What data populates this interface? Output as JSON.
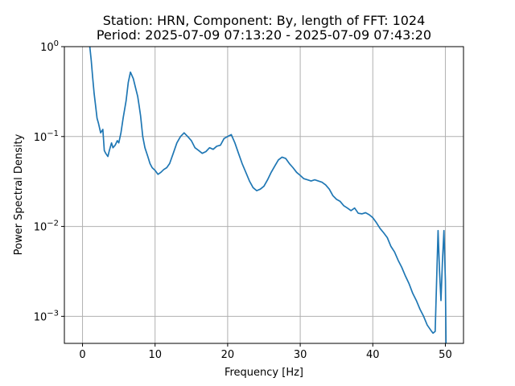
{
  "chart_data": {
    "type": "line",
    "title_line1": "Station: HRN, Component: By, length of FFT: 1024",
    "title_line2": "Period: 2025-07-09 07:13:20 - 2025-07-09 07:43:20",
    "xlabel": "Frequency [Hz]",
    "ylabel": "Power Spectral Density",
    "xlim": [
      -2.5,
      52.5
    ],
    "ylim": [
      0.0005,
      1
    ],
    "yscale": "log",
    "grid": true,
    "x_ticks": [
      0,
      10,
      20,
      30,
      40,
      50
    ],
    "y_ticks": [
      {
        "value": 0.001,
        "base": "10",
        "exp": "−3"
      },
      {
        "value": 0.01,
        "base": "10",
        "exp": "−2"
      },
      {
        "value": 0.1,
        "base": "10",
        "exp": "−1"
      },
      {
        "value": 1,
        "base": "10",
        "exp": "0"
      }
    ],
    "series": [
      {
        "color": "#1f77b4",
        "x": [
          1.0,
          1.2,
          1.4,
          1.6,
          1.8,
          2.0,
          2.2,
          2.5,
          2.8,
          3.0,
          3.2,
          3.5,
          3.7,
          4.0,
          4.2,
          4.5,
          4.8,
          5.0,
          5.3,
          5.6,
          6.0,
          6.3,
          6.6,
          7.0,
          7.3,
          7.6,
          7.8,
          8.0,
          8.3,
          8.6,
          9.0,
          9.3,
          9.6,
          10.0,
          10.4,
          10.8,
          11.2,
          11.6,
          12.0,
          12.5,
          13.0,
          13.5,
          14.0,
          14.5,
          15.0,
          15.5,
          16.0,
          16.5,
          17.0,
          17.5,
          18.0,
          18.5,
          19.0,
          19.5,
          20.0,
          20.5,
          21.0,
          21.5,
          22.0,
          22.5,
          23.0,
          23.5,
          24.0,
          24.5,
          25.0,
          25.5,
          26.0,
          26.5,
          27.0,
          27.5,
          28.0,
          28.5,
          29.0,
          29.5,
          30.0,
          30.5,
          31.0,
          31.5,
          32.0,
          32.5,
          33.0,
          33.5,
          34.0,
          34.5,
          35.0,
          35.5,
          36.0,
          36.5,
          37.0,
          37.5,
          38.0,
          38.5,
          39.0,
          39.5,
          40.0,
          40.5,
          41.0,
          41.5,
          42.0,
          42.5,
          43.0,
          43.5,
          44.0,
          44.5,
          45.0,
          45.5,
          46.0,
          46.5,
          47.0,
          47.5,
          48.0,
          48.3,
          48.6,
          48.8,
          49.0,
          49.2,
          49.4,
          49.6,
          49.8,
          50.0,
          50.1
        ],
        "y": [
          1.0,
          0.7,
          0.45,
          0.3,
          0.22,
          0.16,
          0.14,
          0.11,
          0.12,
          0.07,
          0.065,
          0.06,
          0.07,
          0.085,
          0.075,
          0.08,
          0.09,
          0.085,
          0.11,
          0.16,
          0.25,
          0.4,
          0.52,
          0.44,
          0.35,
          0.28,
          0.22,
          0.17,
          0.1,
          0.075,
          0.06,
          0.05,
          0.045,
          0.042,
          0.038,
          0.04,
          0.043,
          0.045,
          0.05,
          0.065,
          0.085,
          0.1,
          0.11,
          0.1,
          0.09,
          0.075,
          0.07,
          0.065,
          0.068,
          0.075,
          0.072,
          0.078,
          0.08,
          0.095,
          0.1,
          0.105,
          0.085,
          0.065,
          0.05,
          0.04,
          0.032,
          0.027,
          0.025,
          0.026,
          0.028,
          0.033,
          0.04,
          0.047,
          0.055,
          0.059,
          0.057,
          0.05,
          0.045,
          0.04,
          0.037,
          0.034,
          0.033,
          0.032,
          0.033,
          0.032,
          0.031,
          0.029,
          0.026,
          0.022,
          0.02,
          0.019,
          0.017,
          0.016,
          0.015,
          0.016,
          0.014,
          0.0138,
          0.0142,
          0.0135,
          0.0125,
          0.011,
          0.0095,
          0.0085,
          0.0075,
          0.006,
          0.0052,
          0.0042,
          0.0035,
          0.0028,
          0.0023,
          0.0018,
          0.0015,
          0.0012,
          0.001,
          0.0008,
          0.0007,
          0.00065,
          0.00068,
          0.0025,
          0.009,
          0.0032,
          0.0015,
          0.004,
          0.009,
          0.0025,
          0.0004
        ]
      }
    ]
  }
}
